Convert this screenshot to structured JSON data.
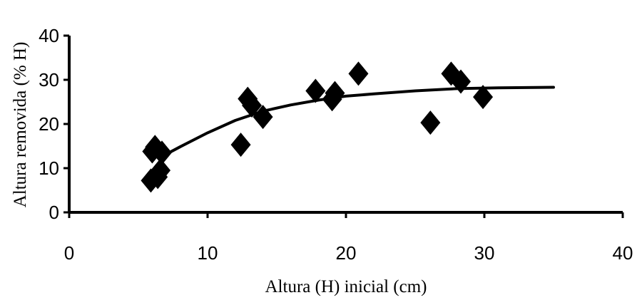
{
  "chart_data": {
    "type": "scatter",
    "title": "",
    "xlabel": "Altura (H) inicial (cm)",
    "ylabel": "Altura removida (% H)",
    "xlim": [
      0,
      40
    ],
    "ylim": [
      0,
      40
    ],
    "xticks": [
      "0",
      "10",
      "20",
      "30",
      "40"
    ],
    "yticks": [
      "0",
      "10",
      "20",
      "30",
      "40"
    ],
    "grid": false,
    "legend": "none",
    "marker": "diamond",
    "color": "#000000",
    "series": [
      {
        "points": [
          {
            "x": 5.9,
            "y": 7.2
          },
          {
            "x": 6.0,
            "y": 13.8
          },
          {
            "x": 6.2,
            "y": 14.8
          },
          {
            "x": 6.4,
            "y": 8.0
          },
          {
            "x": 6.6,
            "y": 9.5
          },
          {
            "x": 6.7,
            "y": 13.5
          },
          {
            "x": 12.4,
            "y": 15.3
          },
          {
            "x": 12.9,
            "y": 25.7
          },
          {
            "x": 13.2,
            "y": 24.2
          },
          {
            "x": 14.0,
            "y": 21.6
          },
          {
            "x": 17.8,
            "y": 27.5
          },
          {
            "x": 19.0,
            "y": 25.6
          },
          {
            "x": 19.2,
            "y": 27.0
          },
          {
            "x": 20.9,
            "y": 31.4
          },
          {
            "x": 26.1,
            "y": 20.3
          },
          {
            "x": 27.6,
            "y": 31.4
          },
          {
            "x": 28.3,
            "y": 29.6
          },
          {
            "x": 29.9,
            "y": 26.1
          }
        ]
      }
    ],
    "trendline": {
      "x": [
        6.5,
        8,
        10,
        12,
        14,
        16,
        18,
        20,
        22,
        25,
        28,
        31,
        35
      ],
      "y": [
        12.3,
        14.8,
        18.0,
        20.8,
        22.9,
        24.3,
        25.4,
        26.3,
        26.8,
        27.5,
        28.0,
        28.2,
        28.3
      ]
    }
  }
}
